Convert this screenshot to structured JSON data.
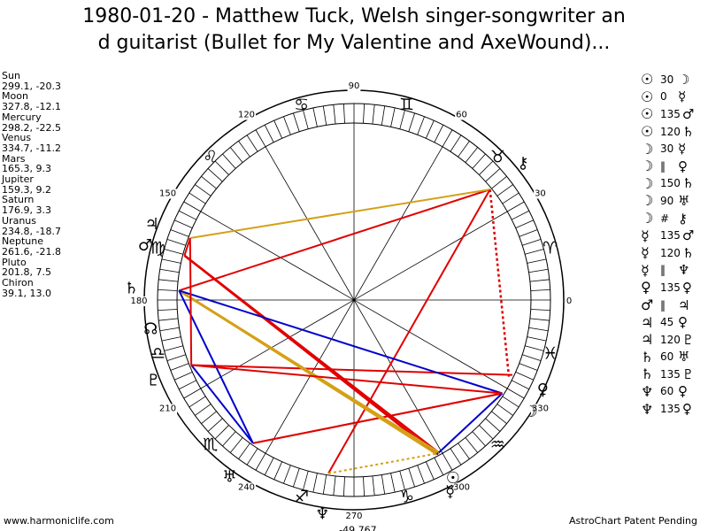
{
  "title": {
    "line1": "1980-01-20 - Matthew Tuck, Welsh singer-songwriter an",
    "line2": "d guitarist (Bullet for My Valentine and AxeWound)..."
  },
  "planets": [
    {
      "name": "Sun",
      "pos": "299.1, -20.3"
    },
    {
      "name": "Moon",
      "pos": "327.8, -12.1"
    },
    {
      "name": "Mercury",
      "pos": "298.2, -22.5"
    },
    {
      "name": "Venus",
      "pos": "334.7, -11.2"
    },
    {
      "name": "Mars",
      "pos": "165.3, 9.3"
    },
    {
      "name": "Jupiter",
      "pos": "159.3, 9.2"
    },
    {
      "name": "Saturn",
      "pos": "176.9, 3.3"
    },
    {
      "name": "Uranus",
      "pos": "234.8, -18.7"
    },
    {
      "name": "Neptune",
      "pos": "261.6, -21.8"
    },
    {
      "name": "Pluto",
      "pos": "201.8, 7.5"
    },
    {
      "name": "Chiron",
      "pos": "39.1, 13.0"
    }
  ],
  "aspects": [
    {
      "p1": "☉",
      "deg": "30",
      "p2": "☽"
    },
    {
      "p1": "☉",
      "deg": "0",
      "p2": "☿"
    },
    {
      "p1": "☉",
      "deg": "135",
      "p2": "♂"
    },
    {
      "p1": "☉",
      "deg": "120",
      "p2": "♄"
    },
    {
      "p1": "☽",
      "deg": "30",
      "p2": "☿"
    },
    {
      "p1": "☽",
      "deg": "‖",
      "p2": "♀"
    },
    {
      "p1": "☽",
      "deg": "150",
      "p2": "♄"
    },
    {
      "p1": "☽",
      "deg": "90",
      "p2": "♅"
    },
    {
      "p1": "☽",
      "deg": "#",
      "p2": "⚷"
    },
    {
      "p1": "☿",
      "deg": "135",
      "p2": "♂"
    },
    {
      "p1": "☿",
      "deg": "120",
      "p2": "♄"
    },
    {
      "p1": "☿",
      "deg": "‖",
      "p2": "♆"
    },
    {
      "p1": "♀",
      "deg": "135",
      "p2": "♀"
    },
    {
      "p1": "♂",
      "deg": "‖",
      "p2": "♃"
    },
    {
      "p1": "♃",
      "deg": "45",
      "p2": "♀"
    },
    {
      "p1": "♃",
      "deg": "120",
      "p2": "♇"
    },
    {
      "p1": "♄",
      "deg": "60",
      "p2": "♅"
    },
    {
      "p1": "♄",
      "deg": "135",
      "p2": "♇"
    },
    {
      "p1": "♆",
      "deg": "60",
      "p2": "♀"
    },
    {
      "p1": "♆",
      "deg": "135",
      "p2": "♀"
    }
  ],
  "degree_labels": [
    "0",
    "30",
    "60",
    "90",
    "120",
    "150",
    "180",
    "210",
    "240",
    "270",
    "300",
    "330"
  ],
  "zodiac_glyphs": [
    "♈",
    "♉",
    "♊",
    "♋",
    "♌",
    "♍",
    "♎",
    "♏",
    "♐",
    "♑",
    "♒",
    "♓"
  ],
  "body_glyphs": {
    "sun": "☉",
    "moon": "☽",
    "mercury": "☿",
    "venus": "♀",
    "mars": "♂",
    "jupiter": "♃",
    "saturn": "♄",
    "uranus": "♅",
    "neptune": "♆",
    "pluto": "♇",
    "chiron": "⚷",
    "node": "☊"
  },
  "neptune_readout": "-49,767",
  "colors": {
    "square": "#e00000",
    "trine": "#0000cc",
    "sesqui": "#d4a017",
    "opposition": "#e00000"
  },
  "footer": {
    "left": "www.harmoniclife.com",
    "right": "AstroChart Patent Pending"
  }
}
